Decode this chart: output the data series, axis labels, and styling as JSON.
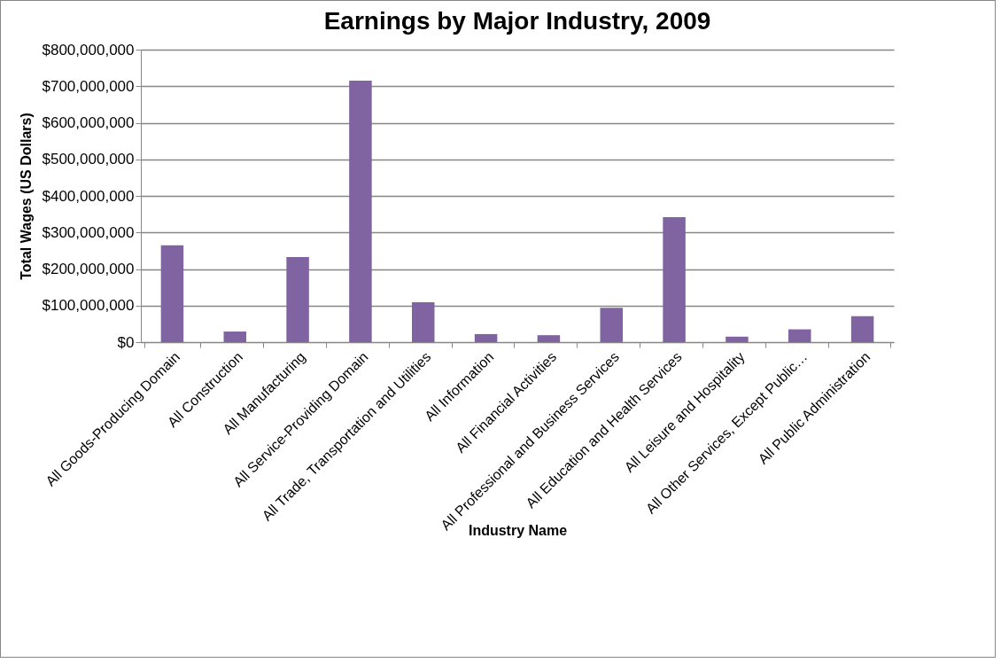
{
  "chart_data": {
    "type": "bar",
    "title": "Earnings by Major Industry, 2009",
    "xlabel": "Industry Name",
    "ylabel": "Total Wages (US Dollars)",
    "categories": [
      "All Goods-Producing Domain",
      "All Construction",
      "All Manufacturing",
      "All Service-Providing Domain",
      "All Trade, Transportation and Utilities",
      "All Information",
      "All Financial Activities",
      "All Professional and Business Services",
      "All Education and Health Services",
      "All Leisure and Hospitality",
      "All Other Services, Except Public…",
      "All Public Administration"
    ],
    "values": [
      265000000,
      29000000,
      233000000,
      715000000,
      109000000,
      22000000,
      19000000,
      94000000,
      342000000,
      15000000,
      35000000,
      71000000
    ],
    "color": "#8064a2",
    "ylim": [
      0,
      800000000
    ],
    "yticks": [
      {
        "value": 0,
        "label": "$0"
      },
      {
        "value": 100000000,
        "label": "$100,000,000"
      },
      {
        "value": 200000000,
        "label": "$200,000,000"
      },
      {
        "value": 300000000,
        "label": "$300,000,000"
      },
      {
        "value": 400000000,
        "label": "$400,000,000"
      },
      {
        "value": 500000000,
        "label": "$500,000,000"
      },
      {
        "value": 600000000,
        "label": "$600,000,000"
      },
      {
        "value": 700000000,
        "label": "$700,000,000"
      },
      {
        "value": 800000000,
        "label": "$800,000,000"
      }
    ],
    "grid": "y"
  }
}
